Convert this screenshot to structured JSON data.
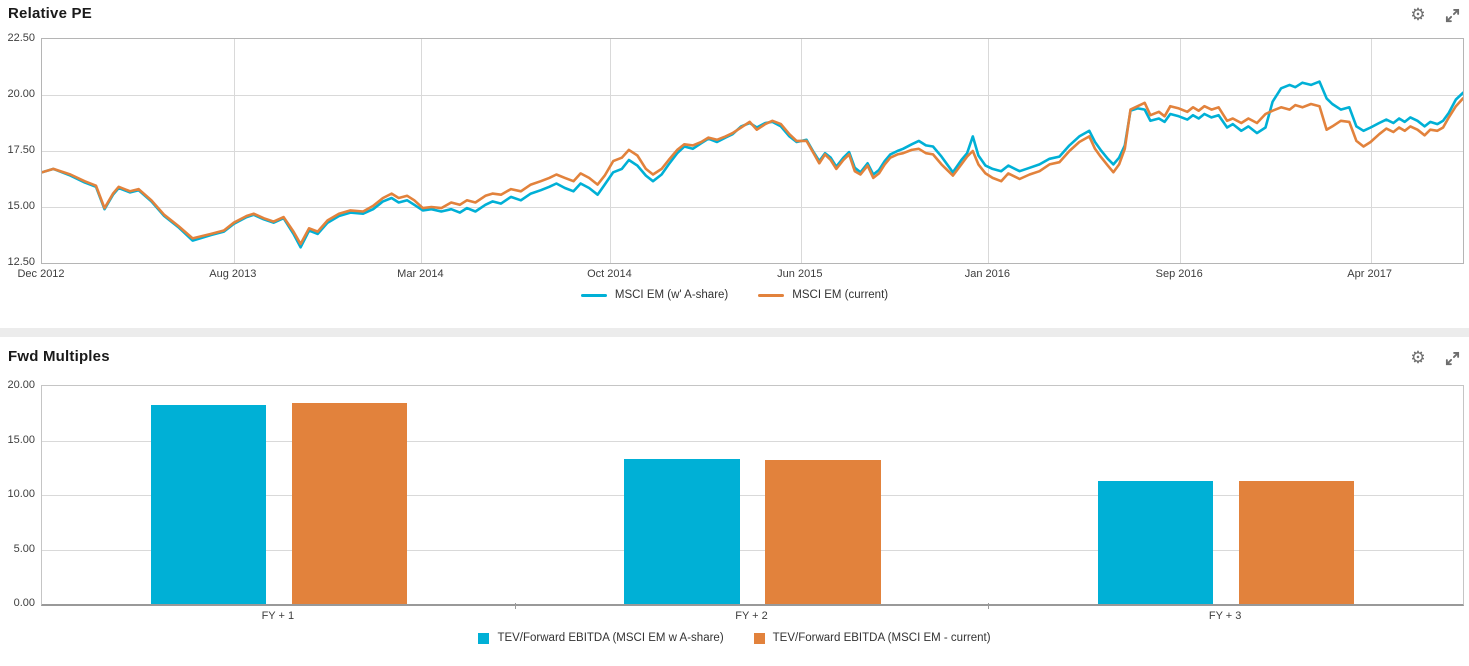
{
  "colors": {
    "accent_cyan": "#00b0d6",
    "accent_orange": "#e2823c",
    "gridline": "#d9d9d9",
    "axis_text": "#3d3d3d",
    "panel_divider": "#ececec",
    "icon_gray": "#6d6d6d"
  },
  "icons": {
    "settings": "gear-icon",
    "fullscreen": "expand-icon"
  },
  "chart_data": [
    {
      "type": "line",
      "title": "Relative PE",
      "ylim": [
        12.5,
        22.5
      ],
      "ytick_labels": [
        "22.50",
        "20.00",
        "17.50",
        "15.00",
        "12.50"
      ],
      "xticks": [
        {
          "label": "Dec 2012",
          "pos": 0.0
        },
        {
          "label": "Aug 2013",
          "pos": 0.135
        },
        {
          "label": "Mar 2014",
          "pos": 0.267
        },
        {
          "label": "Oct 2014",
          "pos": 0.4
        },
        {
          "label": "Jun 2015",
          "pos": 0.534
        },
        {
          "label": "Jan 2016",
          "pos": 0.666
        },
        {
          "label": "Sep 2016",
          "pos": 0.801
        },
        {
          "label": "Apr 2017",
          "pos": 0.935
        }
      ],
      "grid": true,
      "legend_position": "bottom",
      "x": [
        0.0,
        0.008,
        0.02,
        0.03,
        0.038,
        0.044,
        0.05,
        0.054,
        0.062,
        0.068,
        0.077,
        0.086,
        0.096,
        0.106,
        0.119,
        0.128,
        0.135,
        0.144,
        0.149,
        0.156,
        0.163,
        0.17,
        0.177,
        0.182,
        0.188,
        0.194,
        0.201,
        0.209,
        0.217,
        0.226,
        0.233,
        0.24,
        0.246,
        0.251,
        0.257,
        0.262,
        0.268,
        0.274,
        0.281,
        0.288,
        0.294,
        0.299,
        0.305,
        0.312,
        0.317,
        0.323,
        0.33,
        0.337,
        0.344,
        0.351,
        0.357,
        0.362,
        0.368,
        0.374,
        0.379,
        0.385,
        0.391,
        0.396,
        0.402,
        0.408,
        0.413,
        0.419,
        0.425,
        0.43,
        0.436,
        0.441,
        0.447,
        0.452,
        0.458,
        0.464,
        0.469,
        0.475,
        0.481,
        0.486,
        0.492,
        0.498,
        0.503,
        0.509,
        0.514,
        0.52,
        0.526,
        0.531,
        0.538,
        0.543,
        0.547,
        0.551,
        0.555,
        0.559,
        0.564,
        0.568,
        0.572,
        0.576,
        0.581,
        0.585,
        0.589,
        0.593,
        0.597,
        0.602,
        0.606,
        0.612,
        0.617,
        0.622,
        0.627,
        0.633,
        0.641,
        0.647,
        0.651,
        0.655,
        0.659,
        0.664,
        0.669,
        0.675,
        0.68,
        0.688,
        0.695,
        0.702,
        0.709,
        0.716,
        0.723,
        0.73,
        0.737,
        0.741,
        0.745,
        0.75,
        0.754,
        0.758,
        0.762,
        0.766,
        0.771,
        0.776,
        0.78,
        0.786,
        0.79,
        0.794,
        0.8,
        0.806,
        0.81,
        0.814,
        0.818,
        0.823,
        0.828,
        0.834,
        0.838,
        0.844,
        0.849,
        0.855,
        0.861,
        0.866,
        0.872,
        0.878,
        0.882,
        0.887,
        0.893,
        0.899,
        0.904,
        0.908,
        0.914,
        0.92,
        0.925,
        0.93,
        0.935,
        0.941,
        0.946,
        0.951,
        0.955,
        0.959,
        0.963,
        0.968,
        0.973,
        0.977,
        0.982,
        0.986,
        0.99,
        0.995,
        1.0
      ],
      "series": [
        {
          "name": "MSCI EM (w' A-share)",
          "color": "#00b0d6",
          "values": [
            16.55,
            16.7,
            16.4,
            16.1,
            15.9,
            14.9,
            15.55,
            15.85,
            15.65,
            15.75,
            15.25,
            14.6,
            14.1,
            13.5,
            13.75,
            13.9,
            14.25,
            14.55,
            14.65,
            14.45,
            14.3,
            14.5,
            13.8,
            13.2,
            13.95,
            13.8,
            14.3,
            14.6,
            14.75,
            14.7,
            14.9,
            15.25,
            15.4,
            15.2,
            15.3,
            15.1,
            14.85,
            14.9,
            14.8,
            14.9,
            14.75,
            14.95,
            14.8,
            15.1,
            15.25,
            15.15,
            15.45,
            15.3,
            15.6,
            15.75,
            15.9,
            16.05,
            15.85,
            15.7,
            16.05,
            15.85,
            15.55,
            16.0,
            16.55,
            16.7,
            17.1,
            16.85,
            16.4,
            16.15,
            16.45,
            16.9,
            17.4,
            17.7,
            17.6,
            17.85,
            18.05,
            17.9,
            18.1,
            18.25,
            18.6,
            18.75,
            18.55,
            18.75,
            18.8,
            18.6,
            18.15,
            17.9,
            18.0,
            17.45,
            17.05,
            17.4,
            17.2,
            16.8,
            17.2,
            17.45,
            16.75,
            16.55,
            16.95,
            16.45,
            16.65,
            17.05,
            17.35,
            17.5,
            17.6,
            17.8,
            17.95,
            17.75,
            17.7,
            17.25,
            16.55,
            17.1,
            17.4,
            18.15,
            17.3,
            16.85,
            16.7,
            16.6,
            16.85,
            16.6,
            16.75,
            16.9,
            17.15,
            17.25,
            17.75,
            18.15,
            18.4,
            17.9,
            17.55,
            17.15,
            16.9,
            17.2,
            17.75,
            19.3,
            19.4,
            19.35,
            18.85,
            18.95,
            18.8,
            19.15,
            19.05,
            18.9,
            19.1,
            18.95,
            19.15,
            19.0,
            19.1,
            18.55,
            18.7,
            18.4,
            18.6,
            18.3,
            18.55,
            19.7,
            20.3,
            20.45,
            20.35,
            20.55,
            20.45,
            20.6,
            19.85,
            19.6,
            19.35,
            19.45,
            18.6,
            18.4,
            18.55,
            18.75,
            18.9,
            18.75,
            18.95,
            18.8,
            19.0,
            18.85,
            18.6,
            18.8,
            18.7,
            18.85,
            19.2,
            19.8,
            20.1
          ]
        },
        {
          "name": "MSCI EM (current)",
          "color": "#e2823c",
          "values": [
            16.55,
            16.7,
            16.45,
            16.15,
            15.95,
            14.95,
            15.6,
            15.9,
            15.7,
            15.8,
            15.3,
            14.65,
            14.15,
            13.6,
            13.8,
            13.95,
            14.3,
            14.6,
            14.7,
            14.5,
            14.35,
            14.55,
            13.9,
            13.35,
            14.05,
            13.9,
            14.4,
            14.7,
            14.85,
            14.8,
            15.05,
            15.4,
            15.6,
            15.4,
            15.5,
            15.3,
            14.95,
            15.0,
            14.95,
            15.2,
            15.1,
            15.3,
            15.2,
            15.5,
            15.6,
            15.55,
            15.8,
            15.7,
            16.0,
            16.15,
            16.3,
            16.45,
            16.3,
            16.15,
            16.5,
            16.3,
            16.0,
            16.4,
            17.05,
            17.2,
            17.55,
            17.3,
            16.7,
            16.45,
            16.7,
            17.1,
            17.55,
            17.8,
            17.75,
            17.9,
            18.1,
            18.0,
            18.15,
            18.3,
            18.55,
            18.8,
            18.45,
            18.7,
            18.85,
            18.7,
            18.25,
            17.95,
            17.95,
            17.4,
            16.95,
            17.35,
            17.1,
            16.7,
            17.1,
            17.35,
            16.6,
            16.45,
            16.85,
            16.3,
            16.5,
            16.9,
            17.2,
            17.35,
            17.4,
            17.55,
            17.6,
            17.4,
            17.35,
            16.9,
            16.4,
            16.9,
            17.25,
            17.5,
            16.9,
            16.5,
            16.3,
            16.15,
            16.5,
            16.25,
            16.45,
            16.6,
            16.9,
            17.0,
            17.5,
            17.9,
            18.15,
            17.6,
            17.25,
            16.85,
            16.55,
            16.9,
            17.6,
            19.35,
            19.5,
            19.65,
            19.1,
            19.25,
            19.05,
            19.5,
            19.4,
            19.25,
            19.45,
            19.3,
            19.5,
            19.35,
            19.45,
            18.85,
            18.95,
            18.75,
            18.95,
            18.75,
            19.15,
            19.3,
            19.45,
            19.35,
            19.55,
            19.45,
            19.6,
            19.5,
            18.45,
            18.6,
            18.85,
            18.8,
            17.95,
            17.7,
            17.9,
            18.25,
            18.5,
            18.35,
            18.55,
            18.4,
            18.6,
            18.45,
            18.2,
            18.45,
            18.4,
            18.55,
            19.0,
            19.5,
            19.85
          ]
        }
      ]
    },
    {
      "type": "bar",
      "title": "Fwd Multiples",
      "ylim": [
        0,
        20
      ],
      "ytick_labels": [
        "20.00",
        "15.00",
        "10.00",
        "5.00",
        "0.00"
      ],
      "categories": [
        "FY + 1",
        "FY + 2",
        "FY + 3"
      ],
      "grid": true,
      "legend_position": "bottom",
      "series": [
        {
          "name": "TEV/Forward EBITDA (MSCI EM w A-share)",
          "color": "#00b0d6",
          "values": [
            18.3,
            13.3,
            11.3
          ]
        },
        {
          "name": "TEV/Forward EBITDA (MSCI EM - current)",
          "color": "#e2823c",
          "values": [
            18.4,
            13.25,
            11.25
          ]
        }
      ]
    }
  ]
}
